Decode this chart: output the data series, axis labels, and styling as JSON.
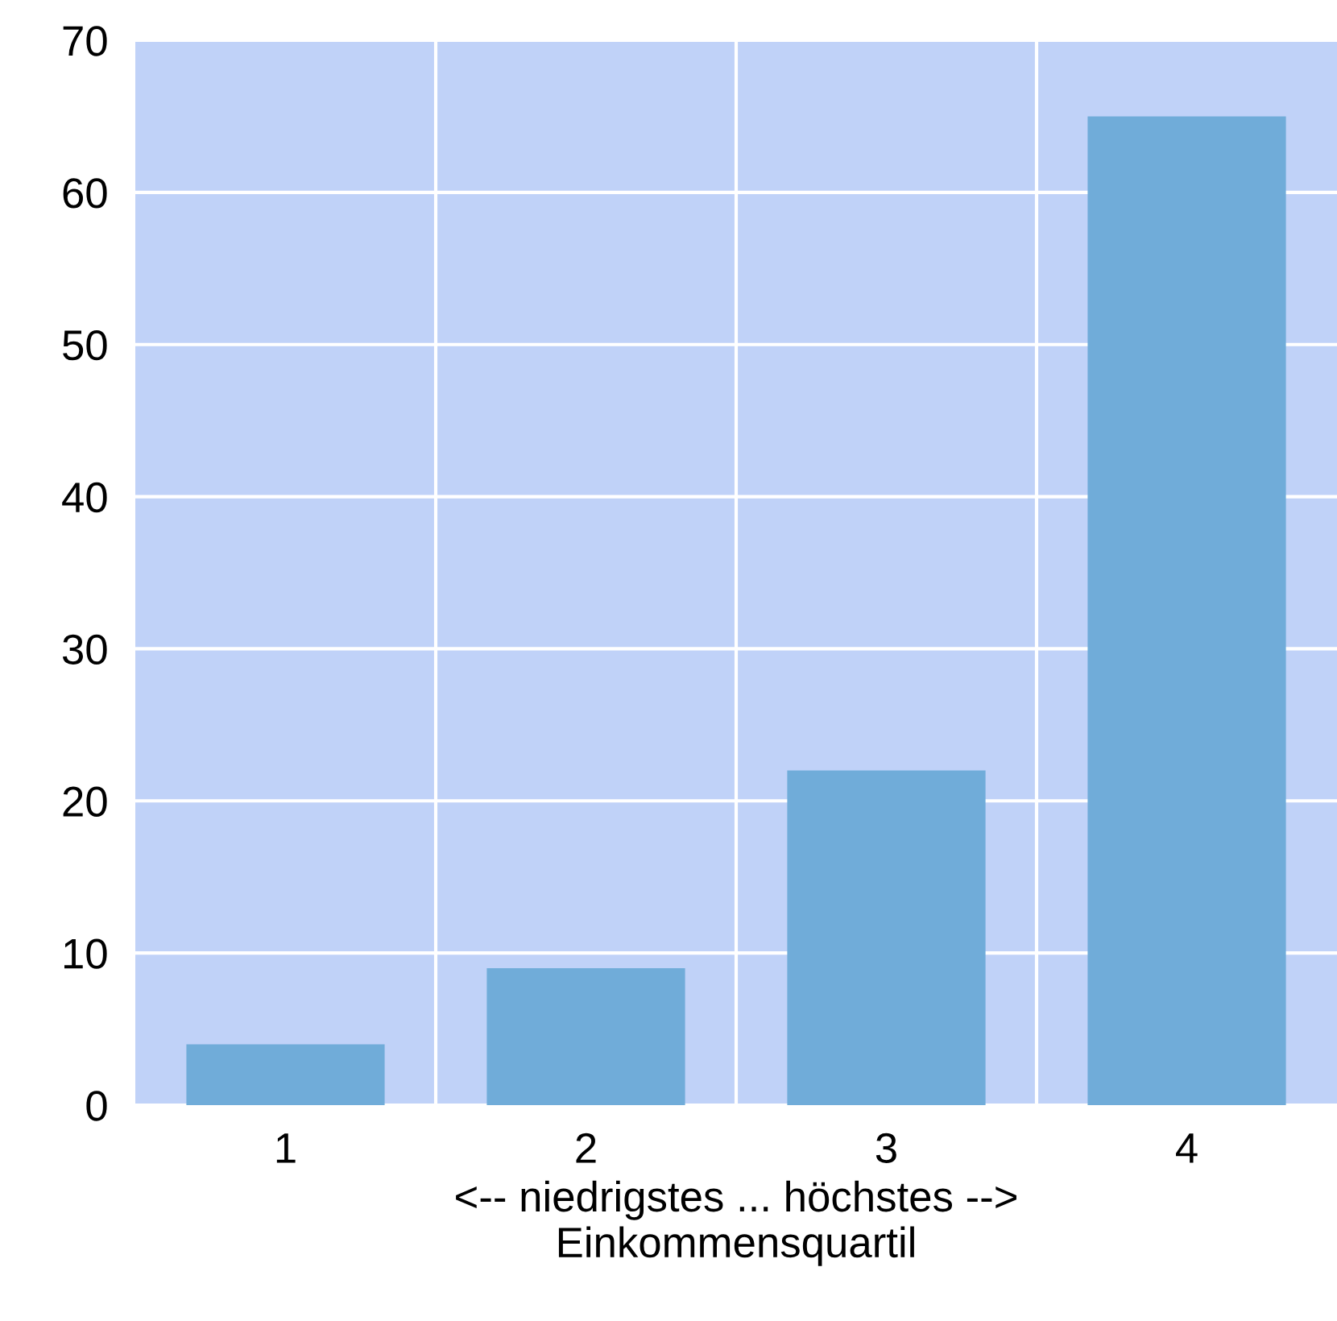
{
  "chart_data": {
    "type": "bar",
    "xlabel": "<-- niedrigstes ... höchstes -->\nEinkommensquartil",
    "categories": [
      "1",
      "2",
      "3",
      "4"
    ],
    "values": [
      4,
      9,
      22,
      65
    ],
    "color": "#70acd9",
    "ylim": [
      0,
      70
    ],
    "yticks": [
      0,
      10,
      20,
      30,
      40,
      50,
      60,
      70
    ],
    "grid": true
  }
}
